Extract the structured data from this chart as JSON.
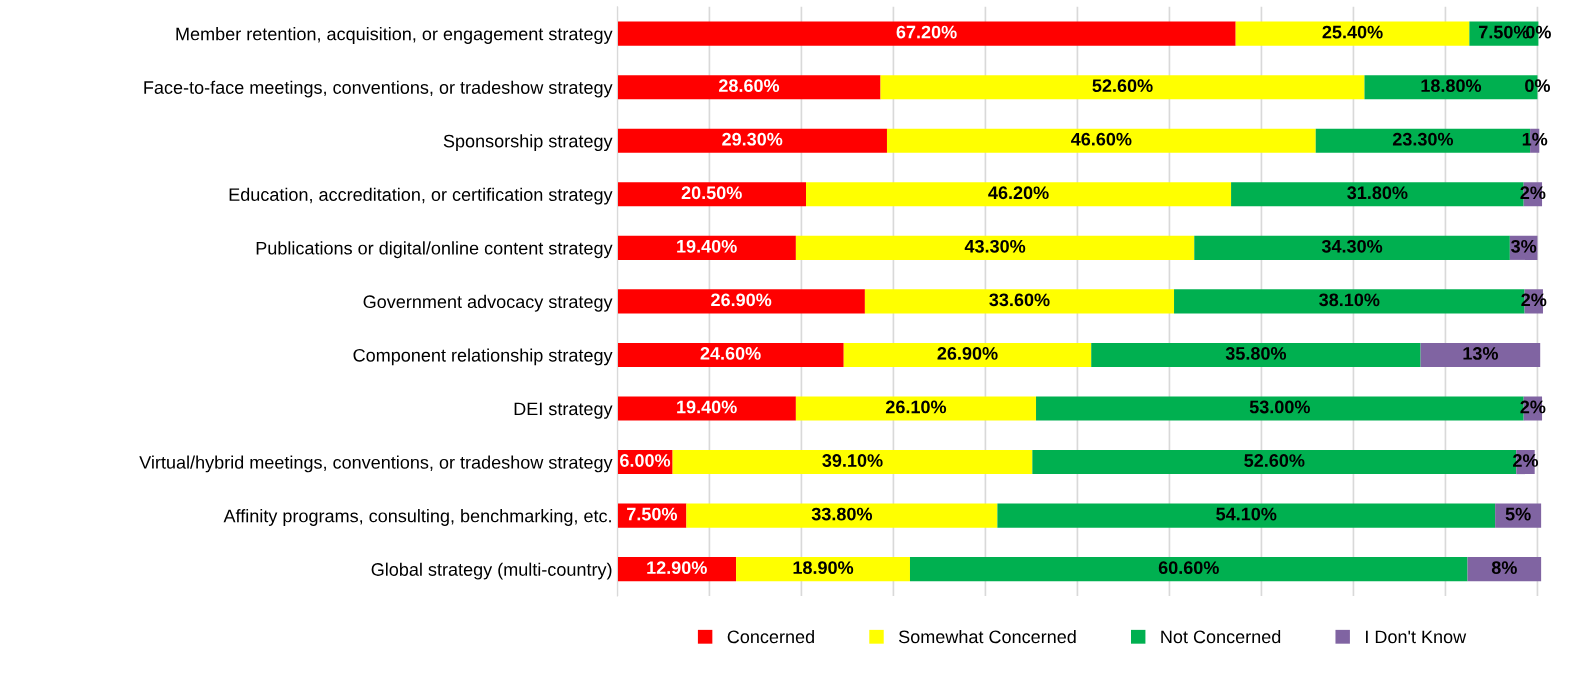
{
  "chart_data": {
    "type": "bar",
    "orientation": "horizontal",
    "stacked": true,
    "categories": [
      "Member retention, acquisition, or engagement strategy",
      "Face-to-face meetings, conventions, or tradeshow strategy",
      "Sponsorship strategy",
      "Education, accreditation, or certification strategy",
      "Publications or digital/online content strategy",
      "Government advocacy strategy",
      "Component relationship strategy",
      "DEI strategy",
      "Virtual/hybrid meetings, conventions, or tradeshow strategy",
      "Affinity programs, consulting, benchmarking, etc.",
      "Global strategy (multi-country)"
    ],
    "series": [
      {
        "name": "Concerned",
        "color": "#ff0000",
        "values": [
          67.2,
          28.6,
          29.3,
          20.5,
          19.4,
          26.9,
          24.6,
          19.4,
          6.0,
          7.5,
          12.9
        ],
        "value_labels": [
          "67.20%",
          "28.60%",
          "29.30%",
          "20.50%",
          "19.40%",
          "26.90%",
          "24.60%",
          "19.40%",
          "6.00%",
          "7.50%",
          "12.90%"
        ]
      },
      {
        "name": "Somewhat Concerned",
        "color": "#ffff00",
        "values": [
          25.4,
          52.6,
          46.6,
          46.2,
          43.3,
          33.6,
          26.9,
          26.1,
          39.1,
          33.8,
          18.9
        ],
        "value_labels": [
          "25.40%",
          "52.60%",
          "46.60%",
          "46.20%",
          "43.30%",
          "33.60%",
          "26.90%",
          "26.10%",
          "39.10%",
          "33.80%",
          "18.90%"
        ]
      },
      {
        "name": "Not Concerned",
        "color": "#00b050",
        "values": [
          7.5,
          18.8,
          23.3,
          31.8,
          34.3,
          38.1,
          35.8,
          53.0,
          52.6,
          54.1,
          60.6
        ],
        "value_labels": [
          "7.50%",
          "18.80%",
          "23.30%",
          "31.80%",
          "34.30%",
          "38.10%",
          "35.80%",
          "53.00%",
          "52.60%",
          "54.10%",
          "60.60%"
        ]
      },
      {
        "name": "I Don't Know",
        "color": "#8064a2",
        "values": [
          0,
          0,
          1,
          2,
          3,
          2,
          13,
          2,
          2,
          5,
          8
        ],
        "value_labels": [
          "0%",
          "0%",
          "1%",
          "2%",
          "3%",
          "2%",
          "13%",
          "2%",
          "2%",
          "5%",
          "8%"
        ]
      }
    ],
    "xlim": [
      0,
      101
    ],
    "xticks": [
      {
        "value": 0,
        "label": null
      },
      {
        "value": 10,
        "label": null
      },
      {
        "value": 20,
        "label": null
      },
      {
        "value": 30,
        "label": null
      },
      {
        "value": 40,
        "label": null
      },
      {
        "value": 50,
        "label": null
      },
      {
        "value": 60,
        "label": null
      },
      {
        "value": 70,
        "label": null
      },
      {
        "value": 80,
        "label": null
      },
      {
        "value": 90,
        "label": null
      },
      {
        "value": 100,
        "label": null
      }
    ],
    "tick_labels": "y",
    "grid": "x",
    "legend": "bottom"
  }
}
